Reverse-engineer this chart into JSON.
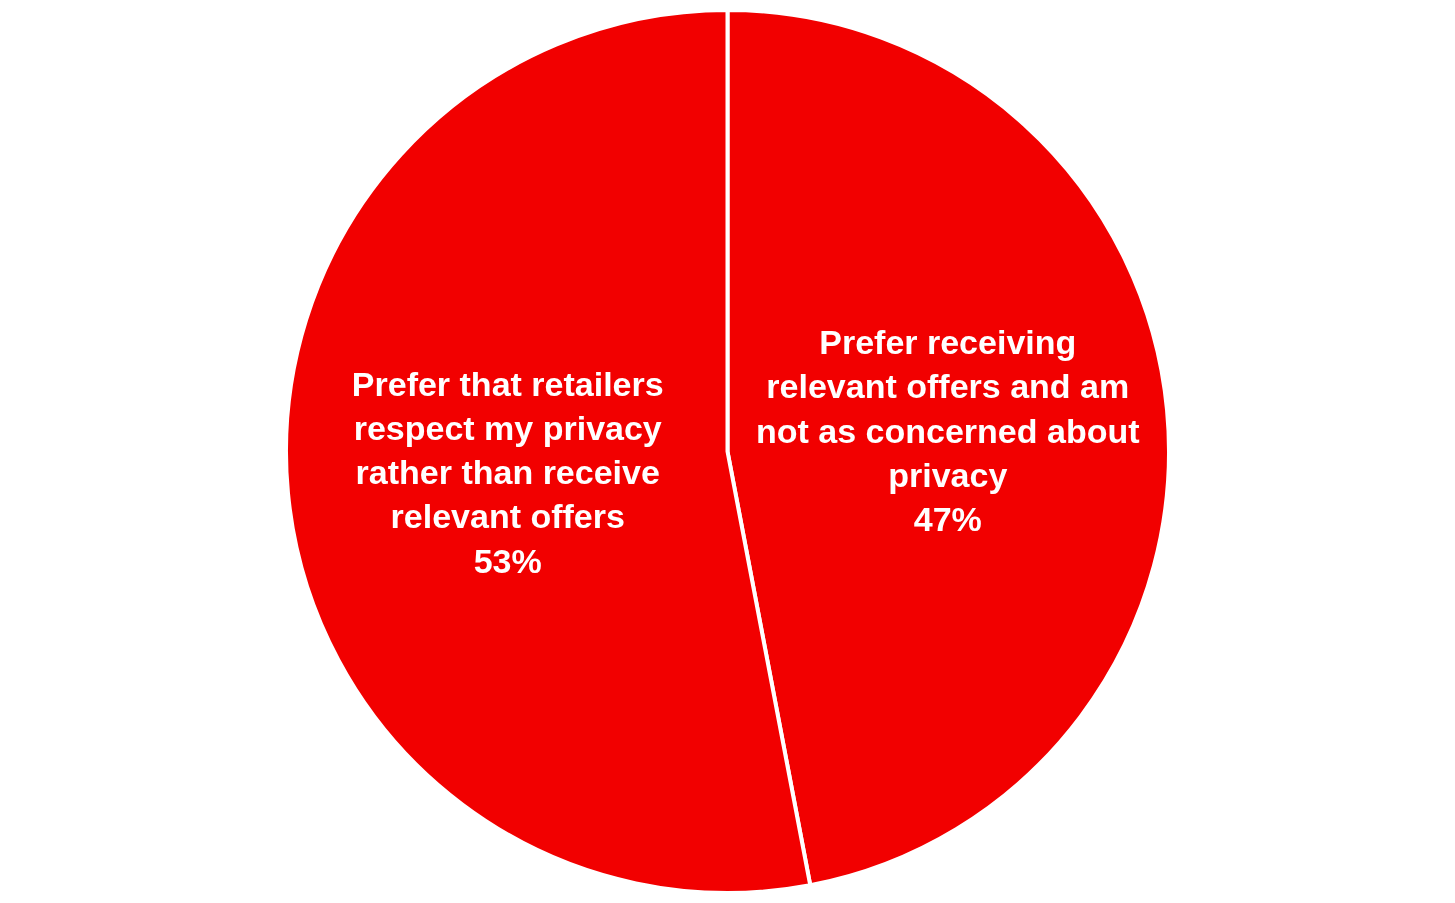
{
  "chart_data": {
    "type": "pie",
    "categories": [
      "Prefer receiving relevant offers and am not as concerned about privacy",
      "Prefer that retailers respect my privacy rather than receive relevant offers"
    ],
    "values": [
      47,
      53
    ],
    "value_labels": [
      "47%",
      "53%"
    ],
    "colors": [
      "#f20000",
      "#f20000"
    ],
    "legend": false
  }
}
